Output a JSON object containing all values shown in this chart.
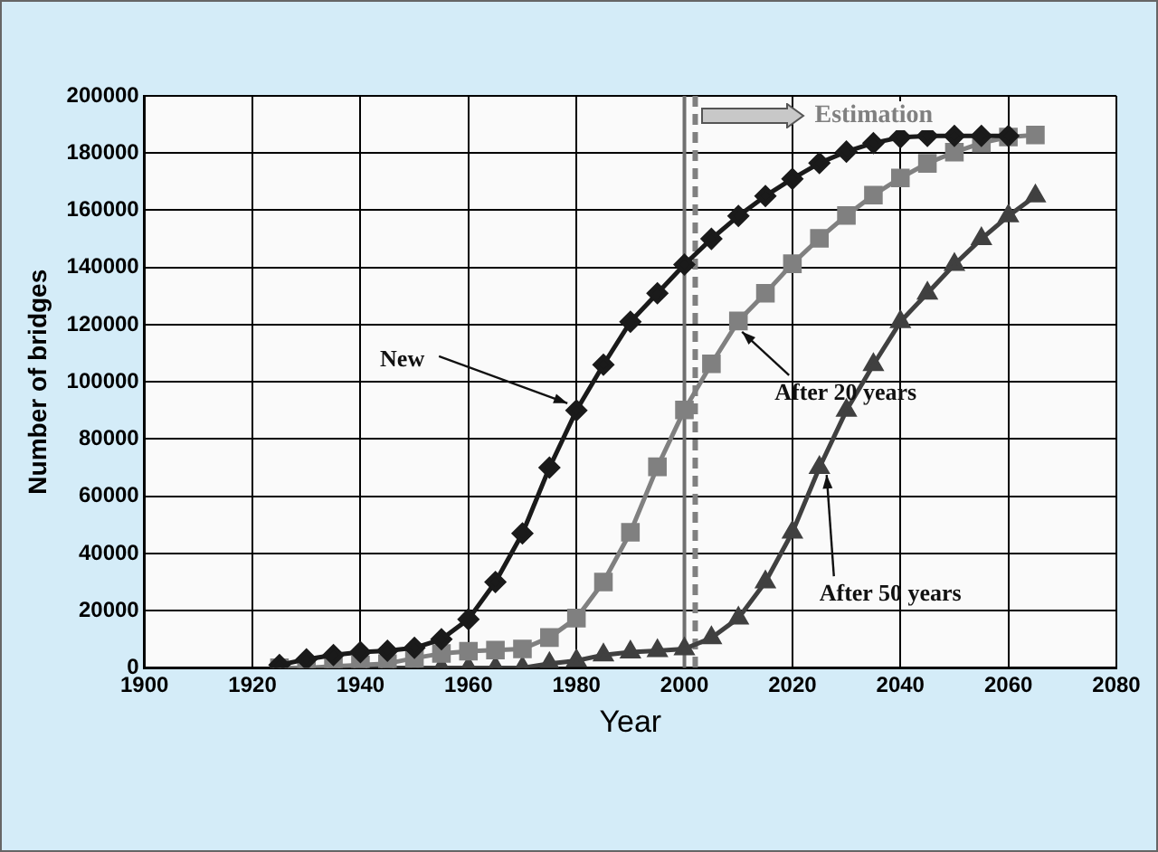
{
  "chart_data": {
    "type": "line",
    "xlabel": "Year",
    "ylabel": "Number of bridges",
    "xlim": [
      1900,
      2080
    ],
    "xticks": [
      1900,
      1920,
      1940,
      1960,
      1980,
      2000,
      2020,
      2040,
      2060,
      2080
    ],
    "ylim": [
      0,
      200000
    ],
    "yticks": [
      0,
      20000,
      40000,
      60000,
      80000,
      100000,
      120000,
      140000,
      160000,
      180000,
      200000
    ],
    "grid": true,
    "legend": false,
    "series": [
      {
        "color": "#1a1a1a",
        "marker": "diamond",
        "x": [
          1925,
          1930,
          1935,
          1940,
          1945,
          1950,
          1955,
          1960,
          1965,
          1970,
          1975,
          1980,
          1985,
          1990,
          1995,
          2000,
          2005,
          2010,
          2015,
          2020,
          2025,
          2030,
          2035,
          2040,
          2045,
          2050,
          2055,
          2060
        ],
        "values": [
          1000,
          3000,
          4500,
          5500,
          6000,
          7000,
          10000,
          17000,
          30000,
          47000,
          70000,
          90000,
          106000,
          121000,
          131000,
          141000,
          150000,
          158000,
          165000,
          171000,
          176500,
          180500,
          183500,
          185500,
          186000,
          186000,
          186000,
          186000
        ]
      },
      {
        "color": "#808080",
        "marker": "square",
        "x": [
          1925,
          1930,
          1935,
          1940,
          1945,
          1950,
          1955,
          1960,
          1965,
          1970,
          1975,
          1980,
          1985,
          1990,
          1995,
          2000,
          2005,
          2010,
          2015,
          2020,
          2025,
          2030,
          2035,
          2040,
          2045,
          2050,
          2055,
          2060,
          2065
        ],
        "values": [
          0,
          0,
          500,
          1000,
          1500,
          3400,
          5000,
          5800,
          6200,
          6600,
          10600,
          17400,
          30000,
          47400,
          70300,
          90200,
          106300,
          121300,
          131000,
          141300,
          150200,
          158200,
          165300,
          171300,
          176400,
          180300,
          183500,
          185600,
          186300
        ]
      },
      {
        "color": "#404040",
        "marker": "triangle",
        "x": [
          1925,
          1930,
          1935,
          1940,
          1945,
          1950,
          1955,
          1960,
          1965,
          1970,
          1975,
          1980,
          1985,
          1990,
          1995,
          2000,
          2005,
          2010,
          2015,
          2020,
          2025,
          2030,
          2035,
          2040,
          2045,
          2050,
          2055,
          2060,
          2065
        ],
        "values": [
          0,
          0,
          0,
          0,
          0,
          0,
          0,
          0,
          0,
          0,
          1500,
          2500,
          4500,
          5500,
          6000,
          6600,
          10500,
          17400,
          30000,
          47400,
          70000,
          90000,
          106000,
          121000,
          131000,
          141000,
          150000,
          158000,
          165000
        ]
      }
    ],
    "ref_lines": [
      {
        "axis": "x",
        "value": 2000,
        "color": "#707070",
        "line_style": "solid"
      },
      {
        "axis": "x",
        "value": 2002,
        "color": "#808080",
        "line_style": "dashed"
      }
    ],
    "annotations": [
      {
        "text": "New",
        "x": 1980,
        "y": 90000
      },
      {
        "text": "After 20 years",
        "x": 2010,
        "y": 121300
      },
      {
        "text": "After 50 years",
        "x": 2025,
        "y": 70000
      },
      "Estimation"
    ]
  }
}
